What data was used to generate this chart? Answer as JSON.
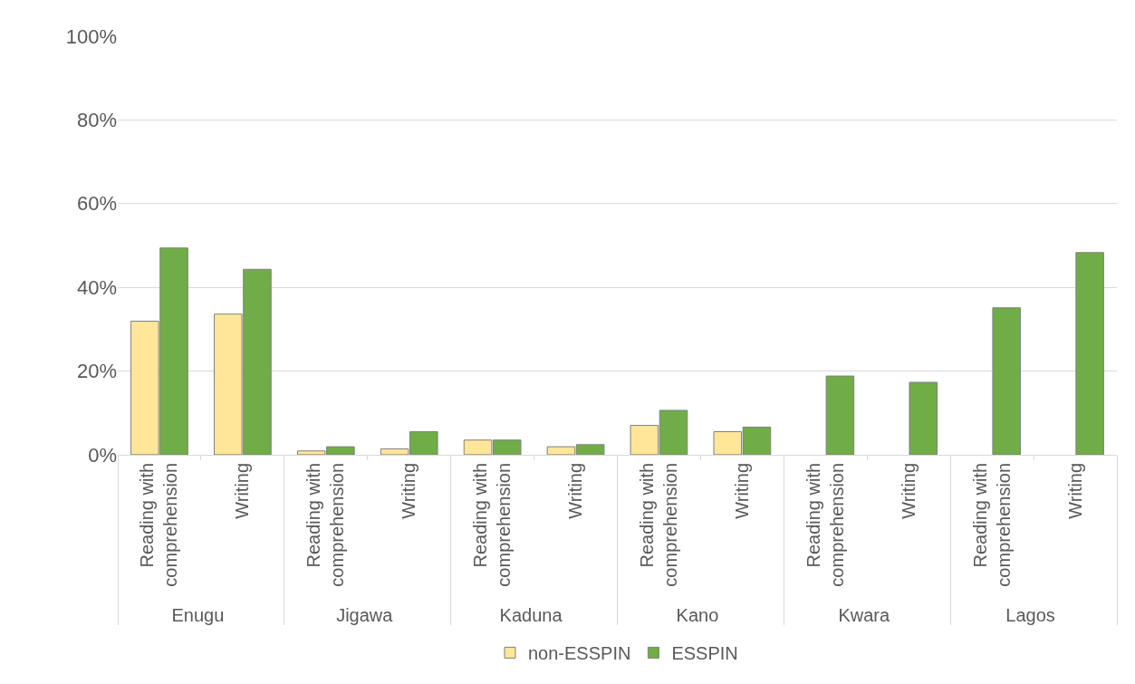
{
  "chart_data": {
    "type": "bar",
    "categories": [
      "Reading with comprehension",
      "Writing",
      "Reading with comprehension",
      "Writing",
      "Reading with comprehension",
      "Writing",
      "Reading with comprehension",
      "Writing",
      "Reading with comprehension",
      "Writing",
      "Reading with comprehension",
      "Writing"
    ],
    "annotations": [
      "Enugu",
      "Jigawa",
      "Kaduna",
      "Kano",
      "Kwara",
      "Lagos"
    ],
    "series": [
      {
        "name": "non-ESSPIN",
        "color": "#ffe699",
        "values": [
          0.319,
          0.336,
          0.009,
          0.014,
          0.035,
          0.019,
          0.07,
          0.055,
          null,
          null,
          null,
          null
        ]
      },
      {
        "name": "ESSPIN",
        "color": "#70ad47",
        "values": [
          0.494,
          0.443,
          0.019,
          0.055,
          0.035,
          0.024,
          0.106,
          0.066,
          0.188,
          0.173,
          0.351,
          0.483
        ]
      }
    ],
    "ylim": [
      0,
      1
    ],
    "yticks": [
      {
        "value": 0,
        "label": "0%"
      },
      {
        "value": 0.2,
        "label": "20%"
      },
      {
        "value": 0.4,
        "label": "40%"
      },
      {
        "value": 0.6,
        "label": "60%"
      },
      {
        "value": 0.8,
        "label": "80%"
      },
      {
        "value": 1,
        "label": "100%"
      }
    ],
    "grid": "y",
    "legend": "bottom"
  }
}
